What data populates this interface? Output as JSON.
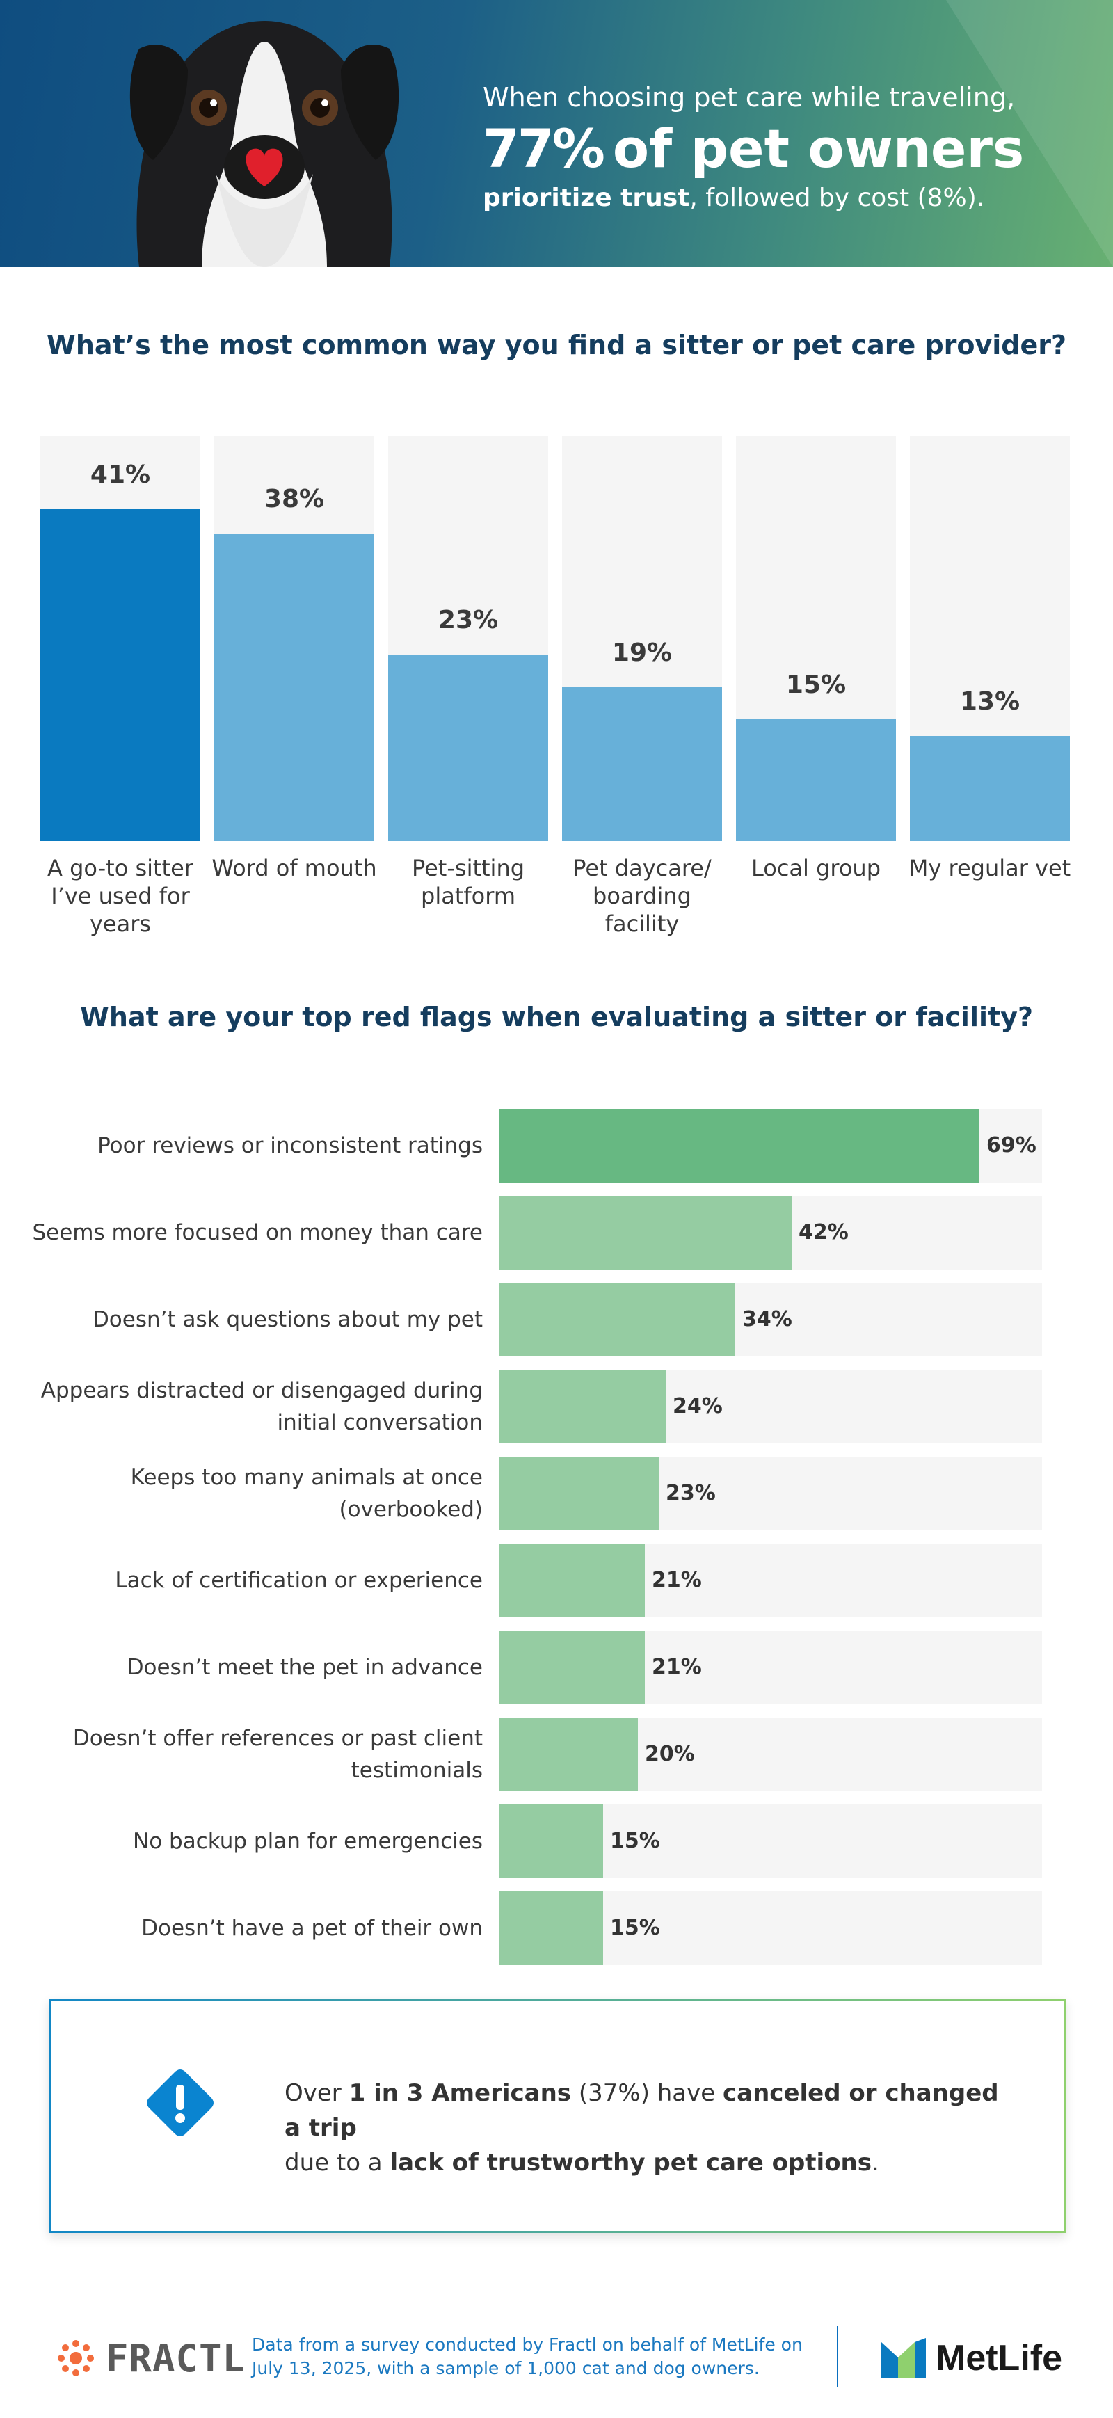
{
  "header": {
    "lead": "When choosing pet care while traveling,",
    "stat_value": "77%",
    "stat_label": "of pet owners",
    "follow_bold": "prioritize trust",
    "follow_rest": ", followed by cost (8%)."
  },
  "colors": {
    "bar_primary": "#0a7ac0",
    "bar_secondary": "#67b0d9",
    "track": "#f5f5f5",
    "hbar_primary": "#67b882",
    "hbar_secondary": "#95cca2",
    "title": "#153d5e"
  },
  "section1": {
    "title": "What’s the most common way you find a sitter or pet care provider?"
  },
  "section2": {
    "title": "What are your top red flags when evaluating a sitter or facility?"
  },
  "chart_data": [
    {
      "type": "bar",
      "title": "What’s the most common way you find a sitter or pet care provider?",
      "categories": [
        "A go-to sitter I’ve used for years",
        "Word of mouth",
        "Pet-sitting platform",
        "Pet daycare/ boarding facility",
        "Local group",
        "My regular vet"
      ],
      "values": [
        41,
        38,
        23,
        19,
        15,
        13
      ],
      "value_labels": [
        "41%",
        "38%",
        "23%",
        "19%",
        "15%",
        "13%"
      ],
      "ylim": [
        0,
        50
      ],
      "xlabel": "",
      "ylabel": ""
    },
    {
      "type": "bar",
      "orientation": "horizontal",
      "title": "What are your top red flags when evaluating a sitter or facility?",
      "categories": [
        "Poor reviews or inconsistent ratings",
        "Seems more focused on money than care",
        "Doesn’t ask questions about my pet",
        "Appears distracted or disengaged during initial conversation",
        "Keeps too many animals at once (overbooked)",
        "Lack of certification or experience",
        "Doesn’t meet the pet in advance",
        "Doesn’t offer references or past client testimonials",
        "No backup plan for emergencies",
        "Doesn’t have a pet of their own"
      ],
      "values": [
        69,
        42,
        34,
        24,
        23,
        21,
        21,
        20,
        15,
        15
      ],
      "value_labels": [
        "69%",
        "42%",
        "34%",
        "24%",
        "23%",
        "21%",
        "21%",
        "20%",
        "15%",
        "15%"
      ],
      "xlim": [
        0,
        78
      ]
    }
  ],
  "callout": {
    "icon": "alert-diamond-icon",
    "p1": "Over ",
    "b1": "1 in 3 Americans",
    "p2": " (37%) have ",
    "b2": "canceled or changed a trip",
    "p3": " due to a ",
    "b3": "lack of trustworthy pet care options",
    "p4": "."
  },
  "footer": {
    "fractl_name": "FRACTL",
    "source_note": "Data from a survey conducted by Fractl on behalf of MetLife on July 13, 2025, with a sample of 1,000 cat and dog owners.",
    "metlife_name": "MetLife"
  }
}
